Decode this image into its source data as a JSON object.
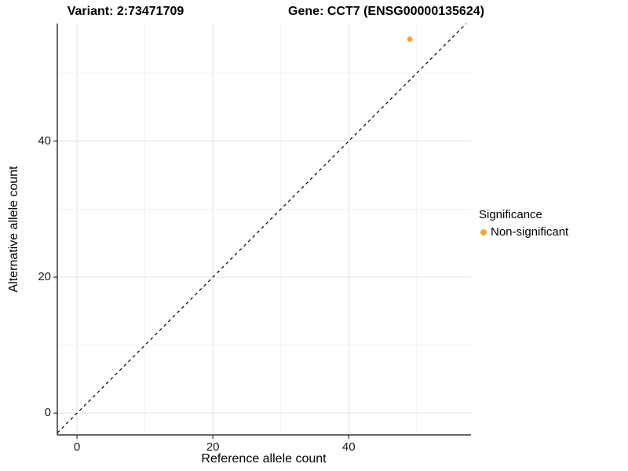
{
  "titles": {
    "variant": "Variant: 2:73471709",
    "gene": "Gene: CCT7 (ENSG00000135624)"
  },
  "axes": {
    "x_label": "Reference allele count",
    "y_label": "Alternative allele count"
  },
  "legend": {
    "title": "Significance",
    "items": [
      {
        "label": "Non-significant",
        "color": "#FAA43C"
      }
    ]
  },
  "colors": {
    "background": "#ffffff",
    "axis_line": "#333333",
    "grid_major": "#e7e7e7",
    "grid_minor": "#f0f0f0",
    "tick_mark": "#333333",
    "identity_line": "#000000",
    "point": "#FAA43C"
  },
  "chart_data": {
    "type": "scatter",
    "title": "Variant: 2:73471709  /  Gene: CCT7 (ENSG00000135624)",
    "xlabel": "Reference allele count",
    "ylabel": "Alternative allele count",
    "x_domain": [
      -2.9,
      58.0
    ],
    "y_domain": [
      -3.2,
      57.3
    ],
    "x_ticks": [
      0,
      20,
      40
    ],
    "y_ticks": [
      0,
      20,
      40
    ],
    "grid_step": 10,
    "grid_on": true,
    "legend_position": "right",
    "series": [
      {
        "name": "Non-significant",
        "color": "#FAA43C",
        "points": [
          {
            "x": 49,
            "y": 55
          }
        ]
      }
    ],
    "reference_line": {
      "type": "identity",
      "slope": 1,
      "intercept": 0,
      "style": "dashed"
    }
  }
}
